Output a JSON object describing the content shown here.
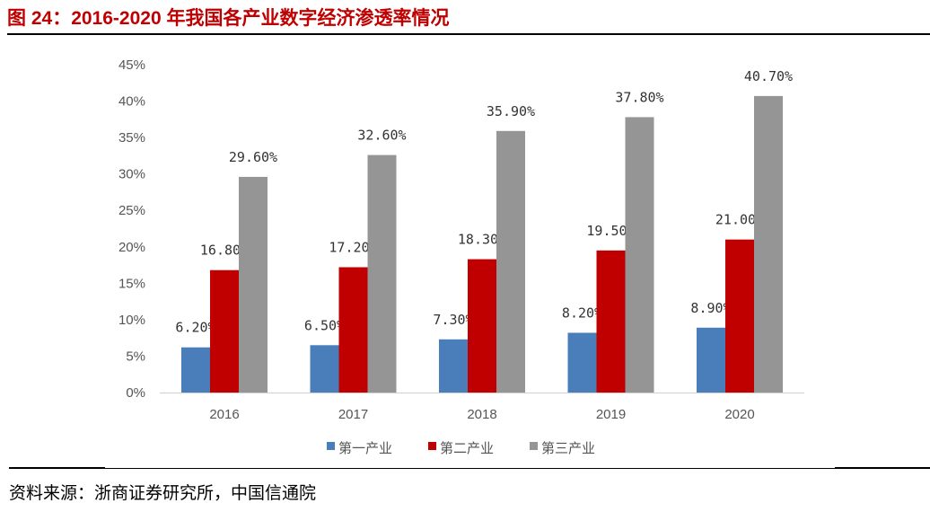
{
  "title": "图 24：2016-2020 年我国各产业数字经济渗透率情况",
  "source": "资料来源：浙商证券研究所，中国信通院",
  "chart_data": {
    "type": "bar",
    "categories": [
      "2016",
      "2017",
      "2018",
      "2019",
      "2020"
    ],
    "series": [
      {
        "name": "第一产业",
        "color": "#4a7ebb",
        "values": [
          6.2,
          6.5,
          7.3,
          8.2,
          8.9
        ],
        "labels": [
          "6.20%",
          "6.50%",
          "7.30%",
          "8.20%",
          "8.90%"
        ]
      },
      {
        "name": "第二产业",
        "color": "#c00000",
        "values": [
          16.8,
          17.2,
          18.3,
          19.5,
          21.0
        ],
        "labels": [
          "16.80%",
          "17.20%",
          "18.30%",
          "19.50%",
          "21.00%"
        ]
      },
      {
        "name": "第三产业",
        "color": "#959595",
        "values": [
          29.6,
          32.6,
          35.9,
          37.8,
          40.7
        ],
        "labels": [
          "29.60%",
          "32.60%",
          "35.90%",
          "37.80%",
          "40.70%"
        ]
      }
    ],
    "ylim": [
      0,
      45
    ],
    "yticks": [
      "0%",
      "5%",
      "10%",
      "15%",
      "20%",
      "25%",
      "30%",
      "35%",
      "40%",
      "45%"
    ],
    "grid": false,
    "legend": "bottom"
  }
}
